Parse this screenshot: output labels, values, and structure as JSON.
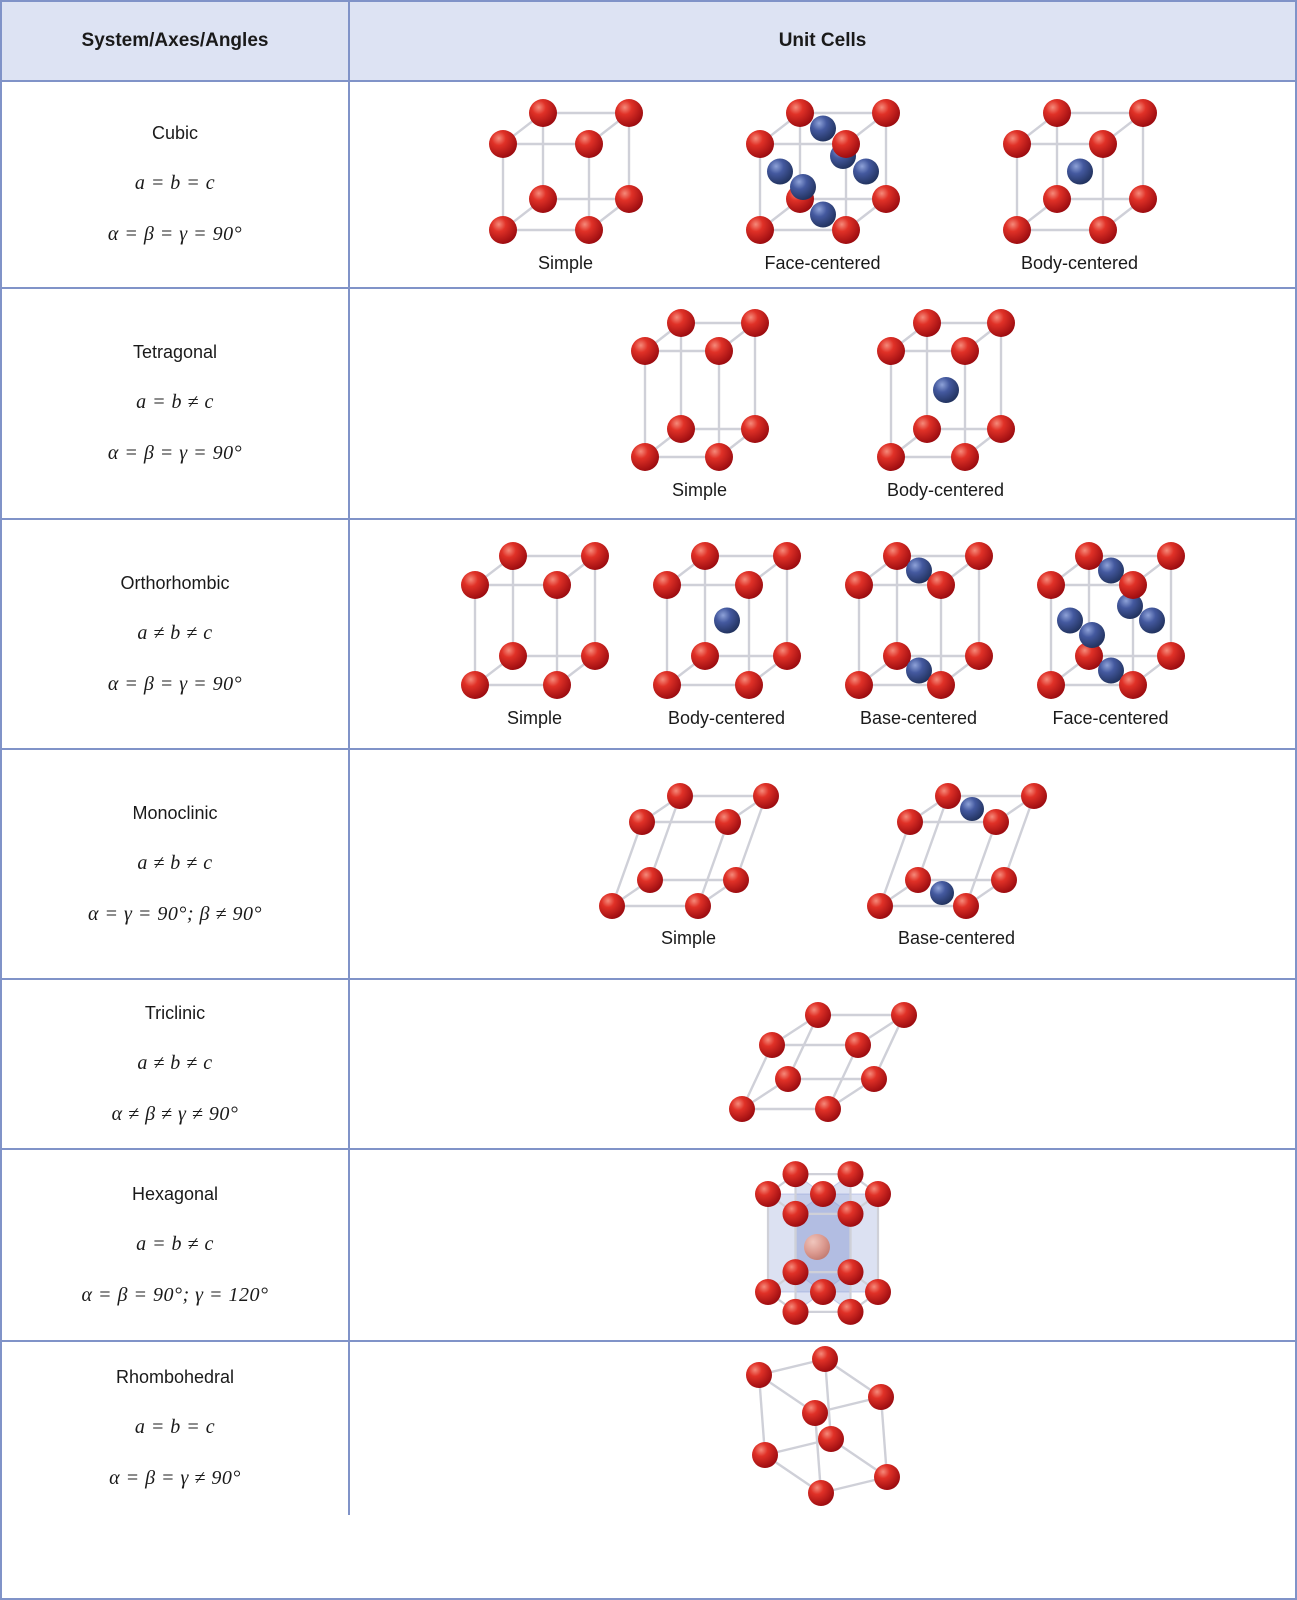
{
  "table": {
    "headers": [
      "System/Axes/Angles",
      "Unit Cells"
    ],
    "rows": [
      {
        "system": "Cubic",
        "axes": "a = b = c",
        "angles": "α = β = γ = 90°",
        "lattice": "cubic",
        "cells": [
          {
            "label": "Simple",
            "centers": "none"
          },
          {
            "label": "Face-centered",
            "centers": "face"
          },
          {
            "label": "Body-centered",
            "centers": "body"
          }
        ]
      },
      {
        "system": "Tetragonal",
        "axes": "a = b ≠ c",
        "angles": "α = β = γ = 90°",
        "lattice": "tetragonal",
        "cells": [
          {
            "label": "Simple",
            "centers": "none"
          },
          {
            "label": "Body-centered",
            "centers": "body"
          }
        ]
      },
      {
        "system": "Orthorhombic",
        "axes": "a ≠ b ≠ c",
        "angles": "α = β = γ = 90°",
        "lattice": "orthorhombic",
        "cells": [
          {
            "label": "Simple",
            "centers": "none"
          },
          {
            "label": "Body-centered",
            "centers": "body"
          },
          {
            "label": "Base-centered",
            "centers": "base"
          },
          {
            "label": "Face-centered",
            "centers": "face"
          }
        ]
      },
      {
        "system": "Monoclinic",
        "axes": "a ≠ b ≠ c",
        "angles": "α = γ = 90°; β ≠ 90°",
        "lattice": "monoclinic",
        "cells": [
          {
            "label": "Simple",
            "centers": "none"
          },
          {
            "label": "Base-centered",
            "centers": "base"
          }
        ]
      },
      {
        "system": "Triclinic",
        "axes": "a ≠ b ≠ c",
        "angles": "α ≠ β ≠ γ ≠ 90°",
        "lattice": "triclinic",
        "cells": [
          {
            "label": "",
            "centers": "none"
          }
        ]
      },
      {
        "system": "Hexagonal",
        "axes": "a = b ≠ c",
        "angles": "α = β = 90°; γ = 120°",
        "lattice": "hexagonal",
        "cells": [
          {
            "label": "",
            "centers": "none"
          }
        ]
      },
      {
        "system": "Rhombohedral",
        "axes": "a = b = c",
        "angles": "α = β = γ ≠ 90°",
        "lattice": "rhombohedral",
        "cells": [
          {
            "label": "",
            "centers": "none"
          }
        ]
      }
    ]
  },
  "colors": {
    "atom_corner": "#d3231c",
    "atom_center": "#3c539b",
    "atom_pale": "#dc9a90",
    "edge_line": "#cfd0d8",
    "table_border": "#8093c8",
    "header_bg": "#dde3f3",
    "text": "#1a1a1a"
  }
}
